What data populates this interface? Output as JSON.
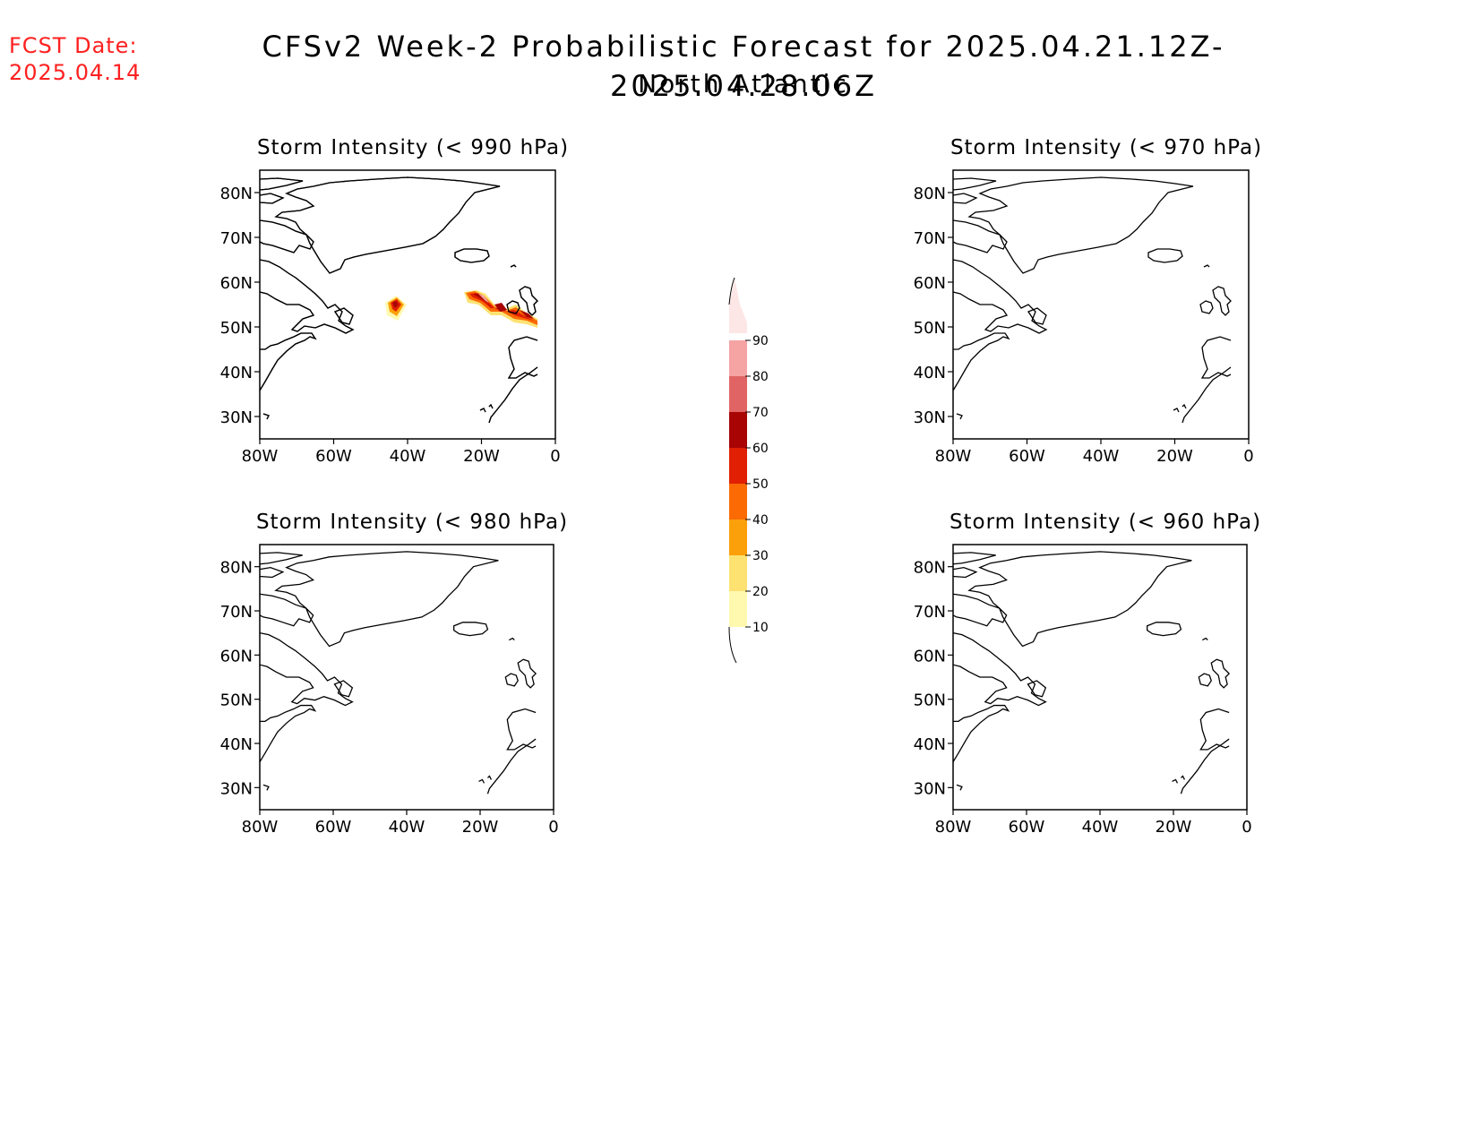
{
  "header": {
    "fcst_label": "FCST Date:",
    "fcst_date": "2025.04.14",
    "title": "CFSv2 Week-2 Probabilistic Forecast for 2025.04.21.12Z-2025.04.28.06Z",
    "subtitle": "North Atlantic"
  },
  "axes": {
    "lat_labels": [
      "80N",
      "70N",
      "60N",
      "50N",
      "40N",
      "30N"
    ],
    "lon_labels": [
      "80W",
      "60W",
      "40W",
      "20W",
      "0"
    ]
  },
  "panels": [
    {
      "title": "Storm Intensity (< 990 hPa)",
      "has_signal": true
    },
    {
      "title": "Storm Intensity (< 970 hPa)",
      "has_signal": false
    },
    {
      "title": "Storm Intensity (< 980 hPa)",
      "has_signal": false
    },
    {
      "title": "Storm Intensity (< 960 hPa)",
      "has_signal": false
    }
  ],
  "colorbar": {
    "levels": [
      "10",
      "20",
      "30",
      "40",
      "50",
      "60",
      "70",
      "80",
      "90"
    ],
    "colors": [
      "#fff9b0",
      "#fde272",
      "#fba00a",
      "#fb6a03",
      "#e01f03",
      "#a80404",
      "#e06464",
      "#f5a3a3",
      "#fde6e6"
    ]
  },
  "colors": {
    "fcst": "#ff2020"
  }
}
